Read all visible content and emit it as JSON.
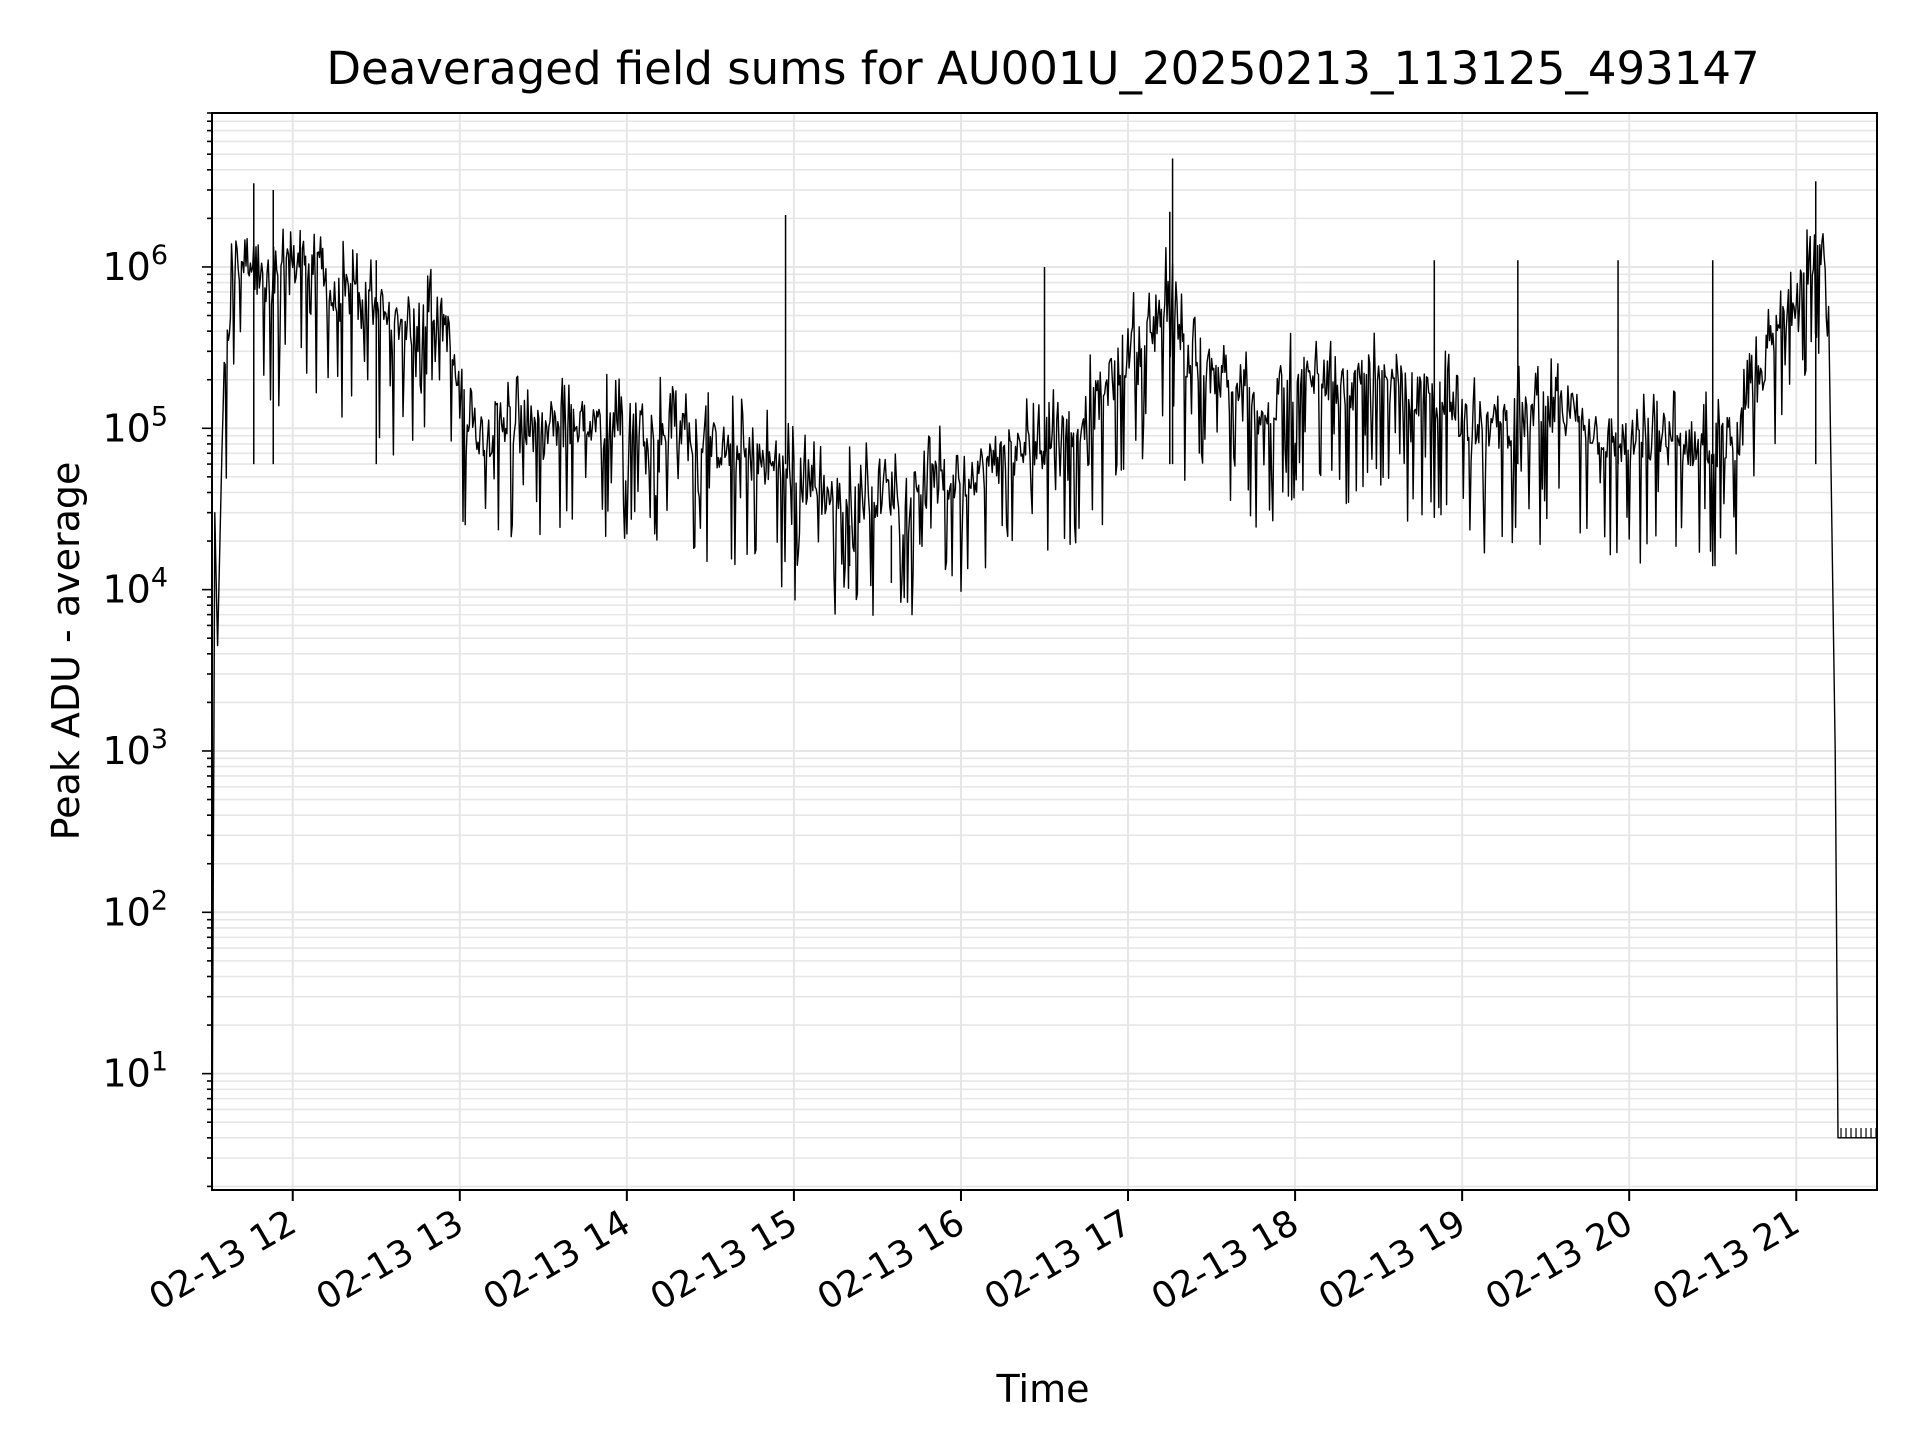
{
  "chart_data": {
    "type": "line",
    "title": "Deaveraged field sums for AU001U_20250213_113125_493147",
    "xlabel": "Time",
    "ylabel": "Peak ADU - average",
    "yscale": "log",
    "ylim": [
      1.9,
      9000000
    ],
    "xlim": [
      "02-13 11:31",
      "02-13 21:29"
    ],
    "grid": "major and minor",
    "line_color": "#000000",
    "grid_color": "#e6e6e6",
    "x_ticks": [
      {
        "t": "02-13 12:00",
        "label": "02-13 12"
      },
      {
        "t": "02-13 13:00",
        "label": "02-13 13"
      },
      {
        "t": "02-13 14:00",
        "label": "02-13 14"
      },
      {
        "t": "02-13 15:00",
        "label": "02-13 15"
      },
      {
        "t": "02-13 16:00",
        "label": "02-13 16"
      },
      {
        "t": "02-13 17:00",
        "label": "02-13 17"
      },
      {
        "t": "02-13 18:00",
        "label": "02-13 18"
      },
      {
        "t": "02-13 19:00",
        "label": "02-13 19"
      },
      {
        "t": "02-13 20:00",
        "label": "02-13 20"
      },
      {
        "t": "02-13 21:00",
        "label": "02-13 21"
      }
    ],
    "y_ticks": [
      {
        "v": 10,
        "base": "10",
        "exp": "1"
      },
      {
        "v": 100,
        "base": "10",
        "exp": "2"
      },
      {
        "v": 1000,
        "base": "10",
        "exp": "3"
      },
      {
        "v": 10000,
        "base": "10",
        "exp": "4"
      },
      {
        "v": 100000,
        "base": "10",
        "exp": "5"
      },
      {
        "v": 1000000,
        "base": "10",
        "exp": "6"
      }
    ],
    "series": [
      {
        "points": [
          {
            "t": "02-13 11:31",
            "y": 2
          },
          {
            "t": "02-13 11:32",
            "y": 30000
          },
          {
            "t": "02-13 11:33",
            "y": 4500
          },
          {
            "t": "02-13 11:35",
            "y": 150000
          },
          {
            "t": "02-13 11:38",
            "y": 700000
          },
          {
            "t": "02-13 11:40",
            "y": 1000000
          },
          {
            "t": "02-13 11:44",
            "y": 1200000
          },
          {
            "t": "02-13 11:48",
            "y": 900000
          },
          {
            "t": "02-13 11:52",
            "y": 600000
          },
          {
            "t": "02-13 11:55",
            "y": 800000
          },
          {
            "t": "02-13 12:00",
            "y": 1000000
          },
          {
            "t": "02-13 12:05",
            "y": 1200000
          },
          {
            "t": "02-13 12:10",
            "y": 800000
          },
          {
            "t": "02-13 12:15",
            "y": 600000
          },
          {
            "t": "02-13 12:20",
            "y": 700000
          },
          {
            "t": "02-13 12:25",
            "y": 500000
          },
          {
            "t": "02-13 12:30",
            "y": 600000
          },
          {
            "t": "02-13 12:35",
            "y": 400000
          },
          {
            "t": "02-13 12:40",
            "y": 500000
          },
          {
            "t": "02-13 12:45",
            "y": 400000
          },
          {
            "t": "02-13 12:50",
            "y": 500000
          },
          {
            "t": "02-13 12:55",
            "y": 450000
          },
          {
            "t": "02-13 13:00",
            "y": 150000
          },
          {
            "t": "02-13 13:05",
            "y": 100000
          },
          {
            "t": "02-13 13:10",
            "y": 90000
          },
          {
            "t": "02-13 13:15",
            "y": 120000
          },
          {
            "t": "02-13 13:20",
            "y": 100000
          },
          {
            "t": "02-13 13:30",
            "y": 90000
          },
          {
            "t": "02-13 13:40",
            "y": 110000
          },
          {
            "t": "02-13 13:50",
            "y": 100000
          },
          {
            "t": "02-13 14:00",
            "y": 120000
          },
          {
            "t": "02-13 14:10",
            "y": 100000
          },
          {
            "t": "02-13 14:20",
            "y": 90000
          },
          {
            "t": "02-13 14:30",
            "y": 80000
          },
          {
            "t": "02-13 14:40",
            "y": 70000
          },
          {
            "t": "02-13 14:50",
            "y": 60000
          },
          {
            "t": "02-13 15:00",
            "y": 50000
          },
          {
            "t": "02-13 15:10",
            "y": 40000
          },
          {
            "t": "02-13 15:20",
            "y": 35000
          },
          {
            "t": "02-13 15:30",
            "y": 40000
          },
          {
            "t": "02-13 15:40",
            "y": 40000
          },
          {
            "t": "02-13 15:50",
            "y": 45000
          },
          {
            "t": "02-13 16:00",
            "y": 50000
          },
          {
            "t": "02-13 16:10",
            "y": 60000
          },
          {
            "t": "02-13 16:20",
            "y": 70000
          },
          {
            "t": "02-13 16:30",
            "y": 80000
          },
          {
            "t": "02-13 16:40",
            "y": 100000
          },
          {
            "t": "02-13 16:50",
            "y": 150000
          },
          {
            "t": "02-13 17:00",
            "y": 300000
          },
          {
            "t": "02-13 17:10",
            "y": 400000
          },
          {
            "t": "02-13 17:16",
            "y": 800000
          },
          {
            "t": "02-13 17:20",
            "y": 300000
          },
          {
            "t": "02-13 17:30",
            "y": 200000
          },
          {
            "t": "02-13 17:40",
            "y": 150000
          },
          {
            "t": "02-13 17:50",
            "y": 120000
          },
          {
            "t": "02-13 18:00",
            "y": 200000
          },
          {
            "t": "02-13 18:10",
            "y": 200000
          },
          {
            "t": "02-13 18:20",
            "y": 180000
          },
          {
            "t": "02-13 18:30",
            "y": 180000
          },
          {
            "t": "02-13 18:40",
            "y": 160000
          },
          {
            "t": "02-13 18:50",
            "y": 150000
          },
          {
            "t": "02-13 19:00",
            "y": 120000
          },
          {
            "t": "02-13 19:10",
            "y": 100000
          },
          {
            "t": "02-13 19:20",
            "y": 110000
          },
          {
            "t": "02-13 19:30",
            "y": 120000
          },
          {
            "t": "02-13 19:40",
            "y": 130000
          },
          {
            "t": "02-13 19:50",
            "y": 90000
          },
          {
            "t": "02-13 20:00",
            "y": 80000
          },
          {
            "t": "02-13 20:10",
            "y": 85000
          },
          {
            "t": "02-13 20:20",
            "y": 80000
          },
          {
            "t": "02-13 20:30",
            "y": 80000
          },
          {
            "t": "02-13 20:40",
            "y": 90000
          },
          {
            "t": "02-13 20:50",
            "y": 300000
          },
          {
            "t": "02-13 21:00",
            "y": 700000
          },
          {
            "t": "02-13 21:05",
            "y": 1200000
          },
          {
            "t": "02-13 21:10",
            "y": 1000000
          },
          {
            "t": "02-13 21:12",
            "y": 200000
          },
          {
            "t": "02-13 21:14",
            "y": 1000
          },
          {
            "t": "02-13 21:15",
            "y": 4
          },
          {
            "t": "02-13 21:29",
            "y": 4
          }
        ],
        "spikes": [
          {
            "t": "02-13 11:46",
            "y": 3300000
          },
          {
            "t": "02-13 11:53",
            "y": 3000000
          },
          {
            "t": "02-13 14:57",
            "y": 2100000
          },
          {
            "t": "02-13 17:16",
            "y": 4700000
          },
          {
            "t": "02-13 17:15",
            "y": 2200000
          },
          {
            "t": "02-13 21:07",
            "y": 3400000
          },
          {
            "t": "02-13 12:30",
            "y": 1100000
          },
          {
            "t": "02-13 16:30",
            "y": 1000000
          },
          {
            "t": "02-13 18:50",
            "y": 1100000
          },
          {
            "t": "02-13 19:20",
            "y": 1100000
          },
          {
            "t": "02-13 19:56",
            "y": 1100000
          },
          {
            "t": "02-13 20:30",
            "y": 1100000
          },
          {
            "t": "02-13 15:35",
            "y": 11000
          },
          {
            "t": "02-13 15:20",
            "y": 14000
          }
        ]
      }
    ]
  }
}
